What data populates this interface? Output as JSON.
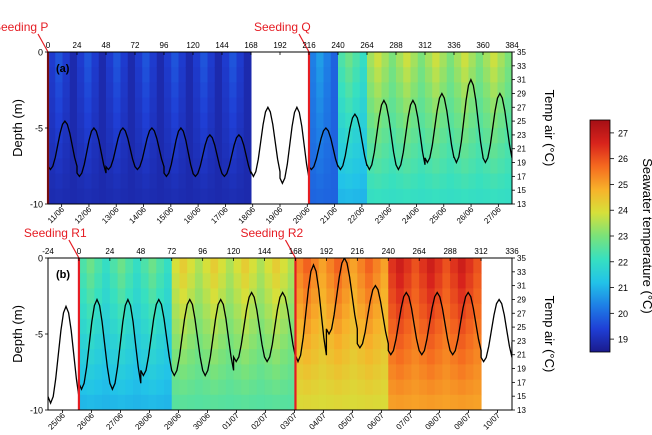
{
  "chart_data": [
    {
      "type": "heatmap",
      "panel_label": "(a)",
      "top_axis_ticks": [
        "0",
        "24",
        "48",
        "72",
        "96",
        "120",
        "144",
        "168",
        "192",
        "216",
        "240",
        "264",
        "288",
        "312",
        "336",
        "360",
        "384"
      ],
      "bottom_axis_ticks": [
        "11/06",
        "12/06",
        "13/06",
        "14/06",
        "15/06",
        "16/06",
        "17/06",
        "18/06",
        "19/06",
        "20/06",
        "21/06",
        "22/06",
        "23/06",
        "24/06",
        "25/06",
        "26/06",
        "27/06"
      ],
      "ylabel": "Depth (m)",
      "y_ticks": [
        "0",
        "-5",
        "-10"
      ],
      "ylim": [
        -10,
        0
      ],
      "y2label": "Temp air (°C)",
      "y2_ticks": [
        "35",
        "33",
        "31",
        "29",
        "27",
        "25",
        "23",
        "21",
        "19",
        "17",
        "15",
        "13"
      ],
      "y2lim": [
        13,
        35
      ],
      "no_data_hours": [
        168,
        216
      ],
      "seeding_events": [
        {
          "label": "Seeding P",
          "hour": 0
        },
        {
          "label": "Seeding Q",
          "hour": 216
        }
      ],
      "seawater_temperature_by_hour": [
        {
          "from": 0,
          "to": 168,
          "value": 19.5
        },
        {
          "from": 216,
          "to": 240,
          "value": 20.5
        },
        {
          "from": 240,
          "to": 264,
          "value": 21.5
        },
        {
          "from": 264,
          "to": 300,
          "value": 22.5
        },
        {
          "from": 300,
          "to": 384,
          "value": 22.5
        }
      ],
      "air_temp_daily": [
        {
          "day": "11/06",
          "min": 18,
          "max": 25
        },
        {
          "day": "12/06",
          "min": 17,
          "max": 24
        },
        {
          "day": "13/06",
          "min": 18,
          "max": 24
        },
        {
          "day": "14/06",
          "min": 18,
          "max": 24
        },
        {
          "day": "15/06",
          "min": 17,
          "max": 24
        },
        {
          "day": "16/06",
          "min": 17,
          "max": 23
        },
        {
          "day": "17/06",
          "min": 17,
          "max": 23
        },
        {
          "day": "18/06",
          "min": 17,
          "max": 27
        },
        {
          "day": "19/06",
          "min": 16,
          "max": 27
        },
        {
          "day": "20/06",
          "min": 18,
          "max": 24
        },
        {
          "day": "21/06",
          "min": 18,
          "max": 26
        },
        {
          "day": "22/06",
          "min": 18,
          "max": 28
        },
        {
          "day": "23/06",
          "min": 18,
          "max": 28
        },
        {
          "day": "24/06",
          "min": 19,
          "max": 29
        },
        {
          "day": "25/06",
          "min": 19,
          "max": 31
        },
        {
          "day": "26/06",
          "min": 19,
          "max": 29
        },
        {
          "day": "27/06",
          "min": 20,
          "max": 30
        }
      ]
    },
    {
      "type": "heatmap",
      "panel_label": "(b)",
      "top_axis_ticks": [
        "-24",
        "0",
        "24",
        "48",
        "72",
        "96",
        "120",
        "144",
        "168",
        "192",
        "216",
        "240",
        "264",
        "288",
        "312",
        "336"
      ],
      "bottom_axis_ticks": [
        "25/06",
        "26/06",
        "27/06",
        "28/06",
        "29/06",
        "30/06",
        "01/07",
        "02/07",
        "03/07",
        "04/07",
        "05/07",
        "06/07",
        "07/07",
        "08/07",
        "09/07",
        "10/07"
      ],
      "ylabel": "Depth (m)",
      "y_ticks": [
        "0",
        "-5",
        "-10"
      ],
      "ylim": [
        -10,
        0
      ],
      "y2label": "Temp air (°C)",
      "y2_ticks": [
        "35",
        "33",
        "31",
        "29",
        "27",
        "25",
        "23",
        "21",
        "19",
        "17",
        "15",
        "13"
      ],
      "y2lim": [
        13,
        35
      ],
      "no_data_hours": [
        312,
        360
      ],
      "seeding_events": [
        {
          "label": "Seeding R1",
          "hour": 0
        },
        {
          "label": "Seeding R2",
          "hour": 168
        }
      ],
      "seawater_temperature_by_hour": [
        {
          "from": 0,
          "to": 72,
          "value": 21.5
        },
        {
          "from": 72,
          "to": 168,
          "value": 23
        },
        {
          "from": 168,
          "to": 240,
          "value": 24.5
        },
        {
          "from": 240,
          "to": 312,
          "value": 25.5
        }
      ],
      "air_temp_daily": [
        {
          "day": "25/06",
          "min": 14,
          "max": 28
        },
        {
          "day": "26/06",
          "min": 16,
          "max": 29
        },
        {
          "day": "27/06",
          "min": 16,
          "max": 29
        },
        {
          "day": "28/06",
          "min": 18,
          "max": 29
        },
        {
          "day": "29/06",
          "min": 18,
          "max": 29
        },
        {
          "day": "30/06",
          "min": 18,
          "max": 29
        },
        {
          "day": "01/07",
          "min": 20,
          "max": 30
        },
        {
          "day": "02/07",
          "min": 20,
          "max": 30
        },
        {
          "day": "03/07",
          "min": 20,
          "max": 34
        },
        {
          "day": "04/07",
          "min": 24,
          "max": 35
        },
        {
          "day": "05/07",
          "min": 22,
          "max": 31
        },
        {
          "day": "06/07",
          "min": 21,
          "max": 30
        },
        {
          "day": "07/07",
          "min": 21,
          "max": 30
        },
        {
          "day": "08/07",
          "min": 21,
          "max": 30
        },
        {
          "day": "09/07",
          "min": 20,
          "max": 29
        },
        {
          "day": "10/07",
          "min": 22,
          "max": 30
        }
      ]
    }
  ],
  "colorbar": {
    "label": "Seawater temperature (°C)",
    "ticks": [
      "27",
      "26",
      "25",
      "24",
      "23",
      "22",
      "21",
      "20",
      "19"
    ],
    "range": [
      18.5,
      27.5
    ],
    "colors": [
      "#1a1a8c",
      "#1f3fd6",
      "#1e7fe6",
      "#22c3e8",
      "#37e0c0",
      "#7ae27a",
      "#d6e03a",
      "#f7b22a",
      "#f56a1f",
      "#d8231c",
      "#a50f15"
    ]
  },
  "colors": {
    "seeding_line": "#e51c23",
    "air_temp_line": "#000000"
  }
}
